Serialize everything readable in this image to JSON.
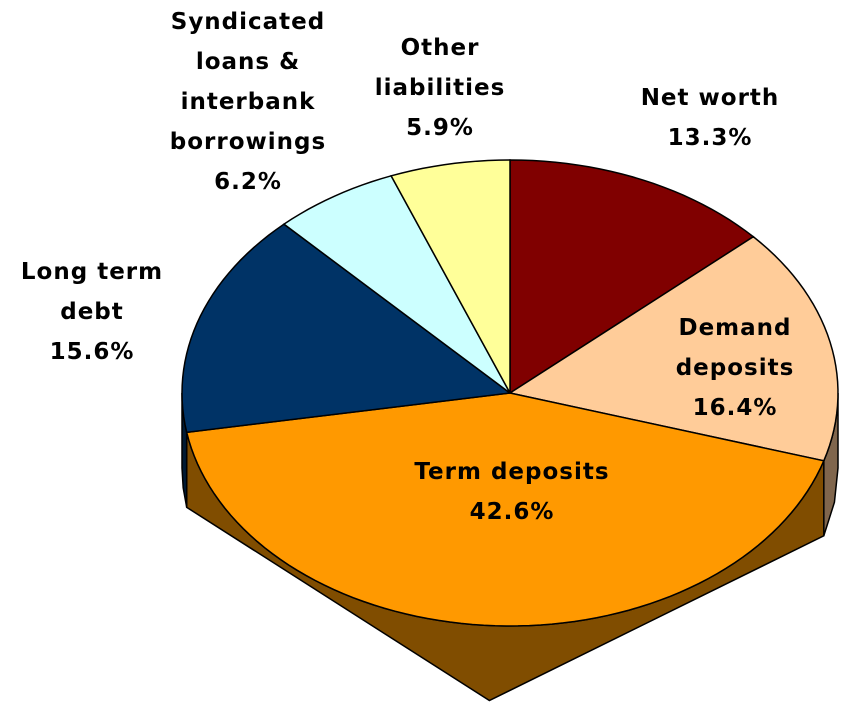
{
  "chart_data": {
    "type": "pie3d",
    "categories": [
      "Net worth",
      "Demand deposits",
      "Term deposits",
      "Long term debt",
      "Syndicated loans & interbank borrowings",
      "Other liabilities"
    ],
    "values": [
      13.3,
      16.4,
      42.6,
      15.6,
      6.2,
      5.9
    ],
    "value_labels": [
      "13.3%",
      "16.4%",
      "42.6%",
      "15.6%",
      "6.2%",
      "5.9%"
    ],
    "colors": [
      "#800000",
      "#ffcc99",
      "#ff9900",
      "#003366",
      "#ccffff",
      "#ffff99"
    ]
  }
}
